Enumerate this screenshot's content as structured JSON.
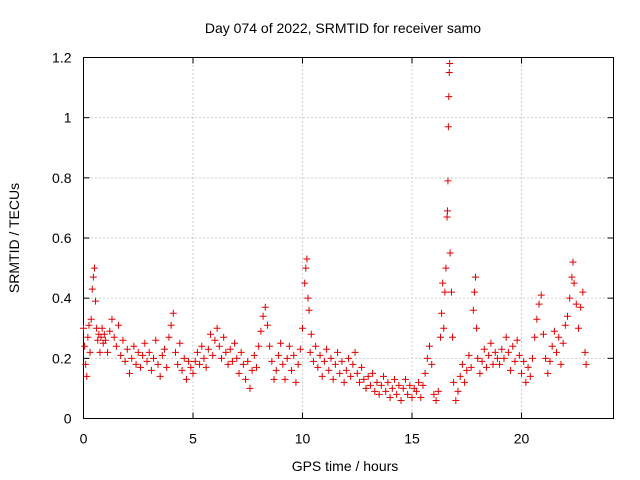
{
  "chart_data": {
    "type": "scatter",
    "title": "Day 074 of 2022, SRMTID for receiver samo",
    "xlabel": "GPS time / hours",
    "ylabel": "SRMTID / TECUs",
    "xlim": [
      0,
      24.2
    ],
    "ylim": [
      0,
      1.2
    ],
    "xticks": [
      0,
      5,
      10,
      15,
      20
    ],
    "xtick_labels": [
      "0",
      "5",
      "10",
      "15",
      "20"
    ],
    "yticks": [
      0,
      0.2,
      0.4,
      0.6,
      0.8,
      1.0,
      1.2
    ],
    "ytick_labels": [
      "0",
      "0.2",
      "0.4",
      "0.6",
      "0.8",
      "1",
      "1.2"
    ],
    "grid": true,
    "marker": "+",
    "color": "#e00000",
    "series": [
      {
        "name": "SRMTID",
        "points": [
          [
            0.0,
            0.3
          ],
          [
            0.05,
            0.24
          ],
          [
            0.1,
            0.18
          ],
          [
            0.15,
            0.14
          ],
          [
            0.2,
            0.27
          ],
          [
            0.25,
            0.31
          ],
          [
            0.3,
            0.22
          ],
          [
            0.35,
            0.33
          ],
          [
            0.4,
            0.43
          ],
          [
            0.45,
            0.47
          ],
          [
            0.5,
            0.5
          ],
          [
            0.55,
            0.39
          ],
          [
            0.6,
            0.3
          ],
          [
            0.65,
            0.26
          ],
          [
            0.7,
            0.28
          ],
          [
            0.75,
            0.22
          ],
          [
            0.8,
            0.27
          ],
          [
            0.85,
            0.3
          ],
          [
            0.9,
            0.25
          ],
          [
            0.95,
            0.28
          ],
          [
            1.0,
            0.26
          ],
          [
            1.1,
            0.22
          ],
          [
            1.2,
            0.29
          ],
          [
            1.3,
            0.33
          ],
          [
            1.4,
            0.27
          ],
          [
            1.5,
            0.24
          ],
          [
            1.6,
            0.31
          ],
          [
            1.7,
            0.21
          ],
          [
            1.8,
            0.26
          ],
          [
            1.9,
            0.19
          ],
          [
            2.0,
            0.23
          ],
          [
            2.1,
            0.15
          ],
          [
            2.2,
            0.2
          ],
          [
            2.3,
            0.24
          ],
          [
            2.4,
            0.18
          ],
          [
            2.5,
            0.22
          ],
          [
            2.6,
            0.17
          ],
          [
            2.7,
            0.21
          ],
          [
            2.8,
            0.25
          ],
          [
            2.9,
            0.19
          ],
          [
            3.0,
            0.22
          ],
          [
            3.1,
            0.16
          ],
          [
            3.2,
            0.2
          ],
          [
            3.3,
            0.26
          ],
          [
            3.4,
            0.18
          ],
          [
            3.5,
            0.14
          ],
          [
            3.6,
            0.21
          ],
          [
            3.7,
            0.23
          ],
          [
            3.8,
            0.17
          ],
          [
            3.9,
            0.27
          ],
          [
            4.0,
            0.31
          ],
          [
            4.1,
            0.35
          ],
          [
            4.2,
            0.22
          ],
          [
            4.3,
            0.18
          ],
          [
            4.4,
            0.25
          ],
          [
            4.5,
            0.16
          ],
          [
            4.6,
            0.2
          ],
          [
            4.7,
            0.13
          ],
          [
            4.8,
            0.19
          ],
          [
            4.9,
            0.17
          ],
          [
            5.0,
            0.15
          ],
          [
            5.1,
            0.19
          ],
          [
            5.2,
            0.22
          ],
          [
            5.3,
            0.18
          ],
          [
            5.4,
            0.24
          ],
          [
            5.5,
            0.2
          ],
          [
            5.6,
            0.17
          ],
          [
            5.7,
            0.23
          ],
          [
            5.8,
            0.28
          ],
          [
            5.9,
            0.21
          ],
          [
            6.0,
            0.26
          ],
          [
            6.1,
            0.3
          ],
          [
            6.2,
            0.24
          ],
          [
            6.3,
            0.2
          ],
          [
            6.4,
            0.27
          ],
          [
            6.5,
            0.22
          ],
          [
            6.6,
            0.18
          ],
          [
            6.7,
            0.23
          ],
          [
            6.8,
            0.19
          ],
          [
            6.9,
            0.25
          ],
          [
            7.0,
            0.2
          ],
          [
            7.1,
            0.15
          ],
          [
            7.2,
            0.22
          ],
          [
            7.3,
            0.18
          ],
          [
            7.4,
            0.13
          ],
          [
            7.5,
            0.19
          ],
          [
            7.6,
            0.1
          ],
          [
            7.7,
            0.16
          ],
          [
            7.8,
            0.21
          ],
          [
            7.9,
            0.17
          ],
          [
            8.0,
            0.24
          ],
          [
            8.1,
            0.29
          ],
          [
            8.2,
            0.34
          ],
          [
            8.3,
            0.37
          ],
          [
            8.4,
            0.31
          ],
          [
            8.5,
            0.24
          ],
          [
            8.6,
            0.19
          ],
          [
            8.7,
            0.13
          ],
          [
            8.8,
            0.16
          ],
          [
            8.9,
            0.21
          ],
          [
            9.0,
            0.25
          ],
          [
            9.1,
            0.18
          ],
          [
            9.2,
            0.13
          ],
          [
            9.3,
            0.2
          ],
          [
            9.4,
            0.24
          ],
          [
            9.5,
            0.16
          ],
          [
            9.6,
            0.21
          ],
          [
            9.7,
            0.12
          ],
          [
            9.8,
            0.18
          ],
          [
            9.9,
            0.23
          ],
          [
            10.0,
            0.3
          ],
          [
            10.1,
            0.45
          ],
          [
            10.15,
            0.5
          ],
          [
            10.2,
            0.53
          ],
          [
            10.25,
            0.4
          ],
          [
            10.3,
            0.36
          ],
          [
            10.35,
            0.22
          ],
          [
            10.4,
            0.28
          ],
          [
            10.5,
            0.19
          ],
          [
            10.6,
            0.24
          ],
          [
            10.7,
            0.17
          ],
          [
            10.8,
            0.21
          ],
          [
            10.9,
            0.14
          ],
          [
            11.0,
            0.19
          ],
          [
            11.1,
            0.23
          ],
          [
            11.2,
            0.16
          ],
          [
            11.3,
            0.2
          ],
          [
            11.4,
            0.13
          ],
          [
            11.5,
            0.18
          ],
          [
            11.6,
            0.22
          ],
          [
            11.7,
            0.15
          ],
          [
            11.8,
            0.19
          ],
          [
            11.9,
            0.12
          ],
          [
            12.0,
            0.16
          ],
          [
            12.1,
            0.2
          ],
          [
            12.2,
            0.14
          ],
          [
            12.3,
            0.18
          ],
          [
            12.4,
            0.22
          ],
          [
            12.5,
            0.15
          ],
          [
            12.6,
            0.12
          ],
          [
            12.7,
            0.17
          ],
          [
            12.8,
            0.13
          ],
          [
            12.9,
            0.1
          ],
          [
            13.0,
            0.14
          ],
          [
            13.1,
            0.11
          ],
          [
            13.2,
            0.15
          ],
          [
            13.3,
            0.09
          ],
          [
            13.4,
            0.12
          ],
          [
            13.5,
            0.08
          ],
          [
            13.6,
            0.11
          ],
          [
            13.7,
            0.14
          ],
          [
            13.8,
            0.09
          ],
          [
            13.9,
            0.12
          ],
          [
            14.0,
            0.07
          ],
          [
            14.1,
            0.1
          ],
          [
            14.2,
            0.13
          ],
          [
            14.3,
            0.08
          ],
          [
            14.4,
            0.11
          ],
          [
            14.5,
            0.06
          ],
          [
            14.6,
            0.1
          ],
          [
            14.7,
            0.13
          ],
          [
            14.8,
            0.08
          ],
          [
            14.9,
            0.11
          ],
          [
            15.0,
            0.07
          ],
          [
            15.1,
            0.1
          ],
          [
            15.2,
            0.09
          ],
          [
            15.3,
            0.12
          ],
          [
            15.4,
            0.07
          ],
          [
            15.5,
            0.11
          ],
          [
            15.6,
            0.15
          ],
          [
            15.7,
            0.2
          ],
          [
            15.8,
            0.24
          ],
          [
            15.9,
            0.18
          ],
          [
            16.0,
            0.08
          ],
          [
            16.1,
            0.06
          ],
          [
            16.2,
            0.09
          ],
          [
            16.3,
            0.27
          ],
          [
            16.35,
            0.35
          ],
          [
            16.4,
            0.45
          ],
          [
            16.45,
            0.3
          ],
          [
            16.5,
            0.42
          ],
          [
            16.55,
            0.5
          ],
          [
            16.6,
            0.67
          ],
          [
            16.62,
            0.69
          ],
          [
            16.64,
            0.79
          ],
          [
            16.66,
            0.97
          ],
          [
            16.68,
            1.07
          ],
          [
            16.7,
            1.15
          ],
          [
            16.72,
            1.18
          ],
          [
            16.74,
            0.55
          ],
          [
            16.8,
            0.42
          ],
          [
            16.85,
            0.27
          ],
          [
            16.9,
            0.12
          ],
          [
            17.0,
            0.06
          ],
          [
            17.1,
            0.09
          ],
          [
            17.2,
            0.14
          ],
          [
            17.3,
            0.18
          ],
          [
            17.4,
            0.12
          ],
          [
            17.5,
            0.16
          ],
          [
            17.6,
            0.21
          ],
          [
            17.7,
            0.17
          ],
          [
            17.8,
            0.36
          ],
          [
            17.85,
            0.42
          ],
          [
            17.9,
            0.47
          ],
          [
            17.95,
            0.3
          ],
          [
            18.0,
            0.2
          ],
          [
            18.1,
            0.15
          ],
          [
            18.2,
            0.19
          ],
          [
            18.3,
            0.23
          ],
          [
            18.4,
            0.17
          ],
          [
            18.5,
            0.21
          ],
          [
            18.6,
            0.25
          ],
          [
            18.7,
            0.18
          ],
          [
            18.8,
            0.22
          ],
          [
            18.9,
            0.2
          ],
          [
            19.0,
            0.18
          ],
          [
            19.1,
            0.23
          ],
          [
            19.2,
            0.2
          ],
          [
            19.3,
            0.27
          ],
          [
            19.4,
            0.22
          ],
          [
            19.5,
            0.16
          ],
          [
            19.6,
            0.24
          ],
          [
            19.7,
            0.19
          ],
          [
            19.8,
            0.26
          ],
          [
            19.9,
            0.21
          ],
          [
            20.0,
            0.15
          ],
          [
            20.1,
            0.19
          ],
          [
            20.2,
            0.12
          ],
          [
            20.3,
            0.17
          ],
          [
            20.4,
            0.14
          ],
          [
            20.5,
            0.2
          ],
          [
            20.6,
            0.27
          ],
          [
            20.7,
            0.33
          ],
          [
            20.8,
            0.38
          ],
          [
            20.9,
            0.41
          ],
          [
            21.0,
            0.28
          ],
          [
            21.1,
            0.2
          ],
          [
            21.2,
            0.15
          ],
          [
            21.3,
            0.19
          ],
          [
            21.4,
            0.24
          ],
          [
            21.5,
            0.29
          ],
          [
            21.6,
            0.22
          ],
          [
            21.7,
            0.27
          ],
          [
            21.8,
            0.18
          ],
          [
            21.9,
            0.25
          ],
          [
            22.0,
            0.31
          ],
          [
            22.1,
            0.34
          ],
          [
            22.2,
            0.4
          ],
          [
            22.3,
            0.47
          ],
          [
            22.35,
            0.52
          ],
          [
            22.4,
            0.45
          ],
          [
            22.5,
            0.38
          ],
          [
            22.6,
            0.3
          ],
          [
            22.7,
            0.37
          ],
          [
            22.8,
            0.42
          ],
          [
            22.9,
            0.22
          ],
          [
            22.95,
            0.18
          ]
        ]
      }
    ]
  }
}
